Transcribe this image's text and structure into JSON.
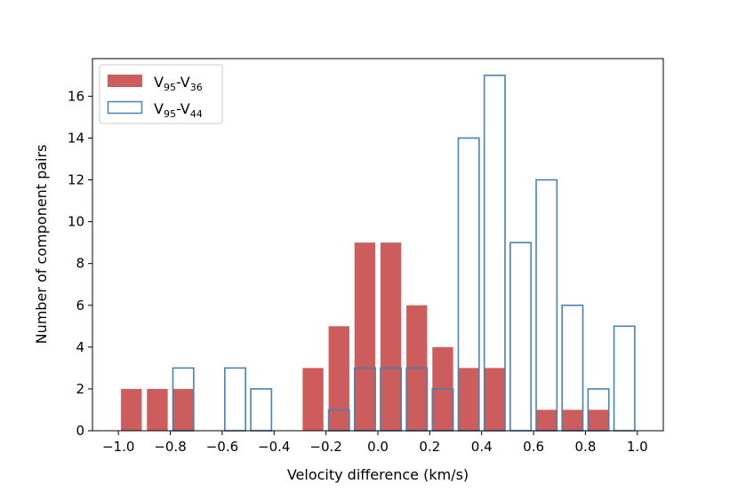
{
  "chart_data": {
    "type": "bar",
    "title": "",
    "xlabel": "Velocity difference (km/s)",
    "ylabel": "Number of component pairs",
    "xlim": [
      -1.1,
      1.1
    ],
    "ylim": [
      0,
      17.8
    ],
    "grid": false,
    "legend_position": "top-left",
    "x_ticks": [
      -1.0,
      -0.8,
      -0.6,
      -0.4,
      -0.2,
      0.0,
      0.2,
      0.4,
      0.6,
      0.8,
      1.0
    ],
    "x_tick_labels": [
      "−1.0",
      "−0.8",
      "−0.6",
      "−0.4",
      "−0.2",
      "0.0",
      "0.2",
      "0.4",
      "0.6",
      "0.8",
      "1.0"
    ],
    "y_ticks": [
      0,
      2,
      4,
      6,
      8,
      10,
      12,
      14,
      16
    ],
    "y_tick_labels": [
      "0",
      "2",
      "4",
      "6",
      "8",
      "10",
      "12",
      "14",
      "16"
    ],
    "bin_width": 0.1,
    "series": [
      {
        "name": "V95-V36",
        "legend_main": "V",
        "legend_parts": [
          "95",
          "-V",
          "36"
        ],
        "style": "filled",
        "color": "#cd5c5c",
        "bin_centers": [
          -0.95,
          -0.85,
          -0.75,
          -0.25,
          -0.15,
          -0.05,
          0.05,
          0.15,
          0.25,
          0.35,
          0.45,
          0.65,
          0.75,
          0.85
        ],
        "values": [
          2,
          2,
          2,
          3,
          5,
          9,
          9,
          6,
          4,
          3,
          3,
          1,
          1,
          1
        ]
      },
      {
        "name": "V95-V44",
        "legend_main": "V",
        "legend_parts": [
          "95",
          "-V",
          "44"
        ],
        "style": "outline",
        "color": "#4682b4",
        "bin_centers": [
          -0.75,
          -0.55,
          -0.45,
          -0.15,
          -0.05,
          0.05,
          0.15,
          0.25,
          0.35,
          0.45,
          0.55,
          0.65,
          0.75,
          0.85,
          0.95
        ],
        "values": [
          3,
          3,
          2,
          1,
          3,
          3,
          3,
          2,
          14,
          17,
          9,
          12,
          6,
          2,
          5
        ]
      }
    ]
  }
}
